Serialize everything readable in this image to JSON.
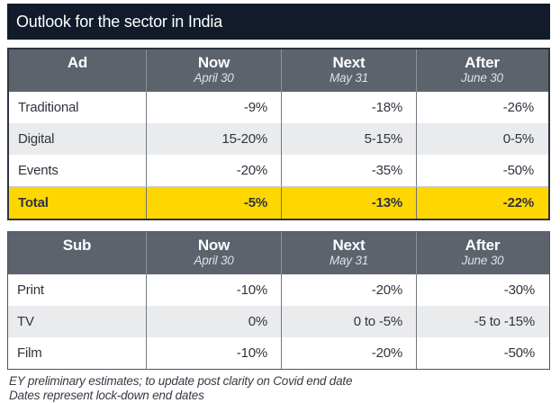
{
  "title": "Outlook for the sector in India",
  "colors": {
    "title_bar_bg": "#111b29",
    "table_header_bg": "#5c636d",
    "shaded_row_bg": "#eaebed",
    "total_row_bg": "#ffd700",
    "header_text": "#ffffff",
    "body_text": "#30333d"
  },
  "tables": [
    {
      "header": {
        "col0": "Ad",
        "col0_date": "",
        "cols": [
          {
            "label": "Now",
            "date": "April 30"
          },
          {
            "label": "Next",
            "date": "May 31"
          },
          {
            "label": "After",
            "date": "June 30"
          }
        ]
      },
      "rows": [
        {
          "label": "Traditional",
          "values": [
            "-9%",
            "-18%",
            "-26%"
          ]
        },
        {
          "label": "Digital",
          "values": [
            "15-20%",
            "5-15%",
            "0-5%"
          ]
        },
        {
          "label": "Events",
          "values": [
            "-20%",
            "-35%",
            "-50%"
          ]
        },
        {
          "label": "Total",
          "values": [
            "-5%",
            "-13%",
            "-22%"
          ]
        }
      ]
    },
    {
      "header": {
        "col0": "Sub",
        "col0_date": "",
        "cols": [
          {
            "label": "Now",
            "date": "April 30"
          },
          {
            "label": "Next",
            "date": "May 31"
          },
          {
            "label": "After",
            "date": "June 30"
          }
        ]
      },
      "rows": [
        {
          "label": "Print",
          "values": [
            "-10%",
            "-20%",
            "-30%"
          ]
        },
        {
          "label": "TV",
          "values": [
            "0%",
            "0 to -5%",
            "-5 to -15%"
          ]
        },
        {
          "label": "Film",
          "values": [
            "-10%",
            "-20%",
            "-50%"
          ]
        }
      ]
    }
  ],
  "footnotes": [
    "EY preliminary estimates; to update post clarity on Covid end date",
    "Dates represent lock-down end dates"
  ],
  "chart_data": [
    {
      "type": "table",
      "title": "Outlook for the sector in India",
      "columns": [
        "Ad",
        "Now (April 30)",
        "Next (May 31)",
        "After (June 30)"
      ],
      "rows": [
        [
          "Traditional",
          "-9%",
          "-18%",
          "-26%"
        ],
        [
          "Digital",
          "15-20%",
          "5-15%",
          "0-5%"
        ],
        [
          "Events",
          "-20%",
          "-35%",
          "-50%"
        ],
        [
          "Total",
          "-5%",
          "-13%",
          "-22%"
        ]
      ],
      "notes": "Total row highlighted in yellow"
    },
    {
      "type": "table",
      "columns": [
        "Sub",
        "Now (April 30)",
        "Next (May 31)",
        "After (June 30)"
      ],
      "rows": [
        [
          "Print",
          "-10%",
          "-20%",
          "-30%"
        ],
        [
          "TV",
          "0%",
          "0 to -5%",
          "-5 to -15%"
        ],
        [
          "Film",
          "-10%",
          "-20%",
          "-50%"
        ]
      ],
      "notes": "EY preliminary estimates; to update post clarity on Covid end date. Dates represent lock-down end dates."
    }
  ]
}
